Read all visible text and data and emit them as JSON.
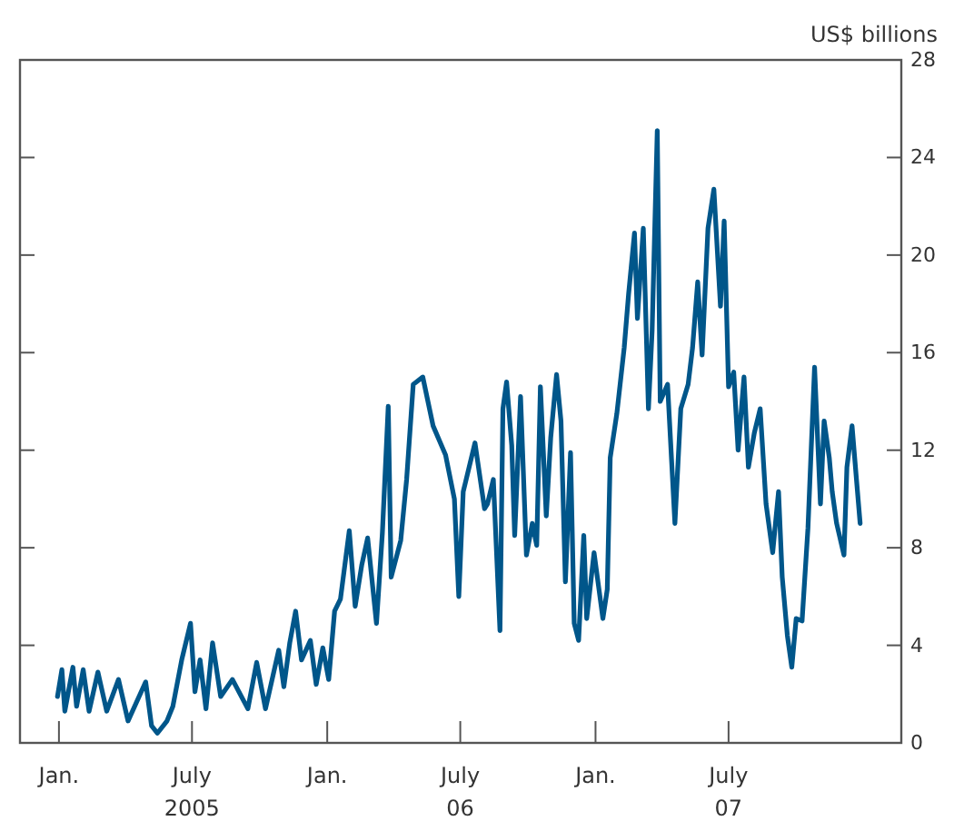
{
  "chart_data": {
    "type": "line",
    "ylabel": "US$ billions",
    "x": [
      "2004-12-30",
      "2005-01-05",
      "2005-01-09",
      "2005-01-20",
      "2005-01-25",
      "2005-02-03",
      "2005-02-11",
      "2005-02-23",
      "2005-03-07",
      "2005-03-23",
      "2005-04-05",
      "2005-04-29",
      "2005-05-07",
      "2005-05-15",
      "2005-05-28",
      "2005-06-05",
      "2005-06-17",
      "2005-06-29",
      "2005-07-05",
      "2005-07-12",
      "2005-07-20",
      "2005-07-29",
      "2005-08-09",
      "2005-08-25",
      "2005-09-15",
      "2005-09-27",
      "2005-10-09",
      "2005-10-27",
      "2005-11-03",
      "2005-11-11",
      "2005-11-19",
      "2005-11-27",
      "2005-12-09",
      "2005-12-17",
      "2005-12-26",
      "2006-01-03",
      "2006-01-11",
      "2006-01-19",
      "2006-01-31",
      "2006-02-08",
      "2006-02-17",
      "2006-02-25",
      "2006-03-09",
      "2006-03-17",
      "2006-03-25",
      "2006-03-29",
      "2006-04-11",
      "2006-04-19",
      "2006-04-28",
      "2006-05-11",
      "2006-05-25",
      "2006-06-11",
      "2006-06-23",
      "2006-06-29",
      "2006-07-05",
      "2006-07-21",
      "2006-08-03",
      "2006-08-07",
      "2006-08-15",
      "2006-08-24",
      "2006-08-28",
      "2006-09-02",
      "2006-09-09",
      "2006-09-13",
      "2006-09-21",
      "2006-09-29",
      "2006-10-07",
      "2006-10-13",
      "2006-10-18",
      "2006-10-26",
      "2006-11-01",
      "2006-11-09",
      "2006-11-15",
      "2006-11-21",
      "2006-11-28",
      "2006-12-03",
      "2006-12-09",
      "2006-12-16",
      "2006-12-20",
      "2006-12-30",
      "2007-01-11",
      "2007-01-17",
      "2007-01-21",
      "2007-01-30",
      "2007-02-09",
      "2007-02-15",
      "2007-02-23",
      "2007-02-27",
      "2007-03-07",
      "2007-03-14",
      "2007-03-19",
      "2007-03-26",
      "2007-03-30",
      "2007-04-09",
      "2007-04-19",
      "2007-04-27",
      "2007-05-07",
      "2007-05-13",
      "2007-05-20",
      "2007-05-26",
      "2007-06-03",
      "2007-06-11",
      "2007-06-20",
      "2007-06-25",
      "2007-07-01",
      "2007-07-08",
      "2007-07-14",
      "2007-07-22",
      "2007-07-28",
      "2007-08-05",
      "2007-08-13",
      "2007-08-21",
      "2007-08-30",
      "2007-09-07",
      "2007-09-12",
      "2007-09-19",
      "2007-09-25",
      "2007-10-01",
      "2007-10-09",
      "2007-10-17",
      "2007-10-26",
      "2007-11-03",
      "2007-11-08",
      "2007-11-15",
      "2007-11-19",
      "2007-11-25",
      "2007-12-05",
      "2007-12-09",
      "2007-12-16",
      "2007-12-22",
      "2007-12-27"
    ],
    "series": [
      {
        "color": "#00568a",
        "values": [
          1.9,
          3.0,
          1.3,
          3.1,
          1.5,
          3.0,
          1.3,
          2.9,
          1.3,
          2.6,
          0.9,
          2.5,
          0.7,
          0.4,
          0.9,
          1.5,
          3.4,
          4.9,
          2.1,
          3.4,
          1.4,
          4.1,
          1.9,
          2.6,
          1.4,
          3.3,
          1.4,
          3.8,
          2.3,
          4.1,
          5.4,
          3.4,
          4.2,
          2.4,
          3.9,
          2.6,
          5.4,
          5.9,
          8.7,
          5.6,
          7.3,
          8.4,
          4.9,
          8.6,
          13.8,
          6.8,
          8.3,
          10.8,
          14.7,
          15.0,
          13.0,
          11.8,
          10.0,
          6.0,
          10.3,
          12.3,
          9.6,
          9.8,
          10.8,
          4.6,
          13.7,
          14.8,
          12.2,
          8.5,
          14.2,
          7.7,
          9.0,
          8.1,
          14.6,
          9.3,
          12.5,
          15.1,
          13.2,
          6.6,
          11.9,
          4.9,
          4.2,
          8.5,
          5.1,
          7.8,
          5.1,
          6.3,
          11.7,
          13.5,
          16.2,
          18.4,
          20.9,
          17.4,
          21.1,
          13.7,
          16.9,
          25.1,
          14.0,
          14.7,
          9.0,
          13.7,
          14.7,
          16.2,
          18.9,
          15.9,
          21.1,
          22.7,
          17.9,
          21.4,
          14.6,
          15.2,
          12.0,
          15.0,
          11.3,
          12.7,
          13.7,
          9.8,
          7.8,
          10.3,
          6.8,
          4.4,
          3.1,
          5.1,
          5.0,
          8.8,
          15.4,
          9.8,
          13.2,
          11.7,
          10.3,
          9.0,
          7.7,
          11.3,
          13.0,
          10.8,
          9.0
        ]
      }
    ],
    "xlim": [
      "2004-11-09",
      "2008-02-21"
    ],
    "xticks": [
      {
        "value": "2005-01-01",
        "label": "Jan."
      },
      {
        "value": "2005-07-01",
        "label": "July\n2005"
      },
      {
        "value": "2006-01-01",
        "label": "Jan."
      },
      {
        "value": "2006-07-01",
        "label": "July\n06"
      },
      {
        "value": "2007-01-01",
        "label": "Jan."
      },
      {
        "value": "2007-07-01",
        "label": "July\n07"
      }
    ],
    "ylim": [
      0,
      28
    ],
    "yticks": [
      0,
      4,
      8,
      12,
      16,
      20,
      24,
      28
    ],
    "grid": false,
    "line_style": "solid",
    "marker": "none"
  }
}
